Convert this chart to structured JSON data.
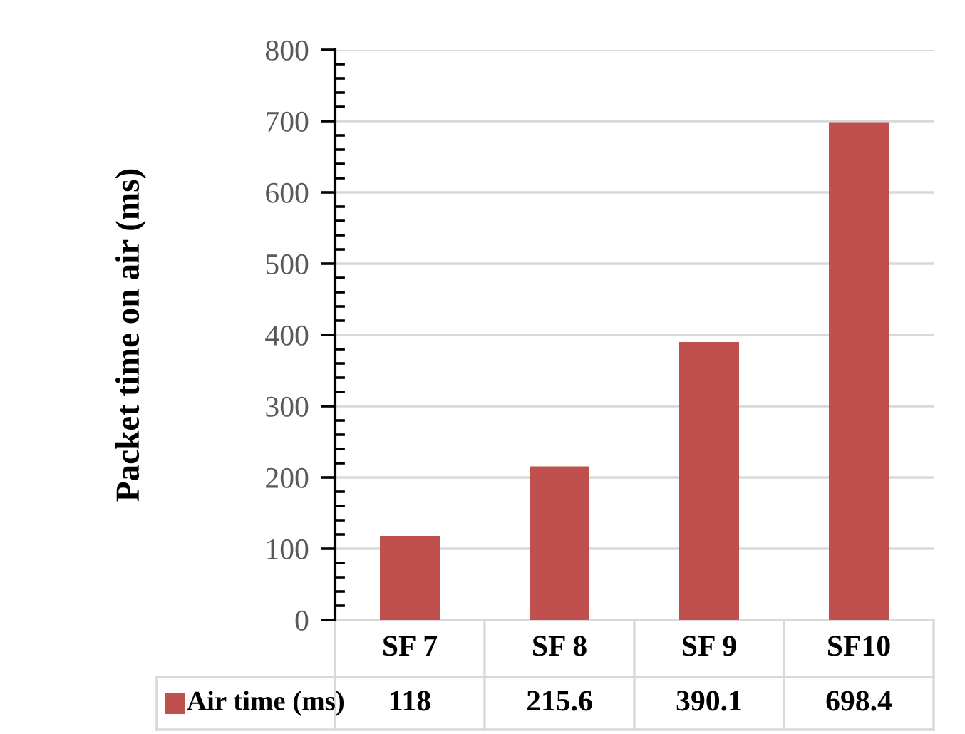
{
  "chart_data": {
    "type": "bar",
    "ylabel": "Packet time on air (ms)",
    "categories": [
      "SF 7",
      "SF 8",
      "SF 9",
      "SF10"
    ],
    "series": [
      {
        "name": "Air time (ms)",
        "color": "#c0504d",
        "values": [
          118,
          215.6,
          390.1,
          698.4
        ]
      }
    ],
    "ylim": [
      0,
      800
    ],
    "yticks": [
      0,
      100,
      200,
      300,
      400,
      500,
      600,
      700,
      800
    ],
    "grid": "y",
    "data_labels": true,
    "legend": "bottom"
  }
}
